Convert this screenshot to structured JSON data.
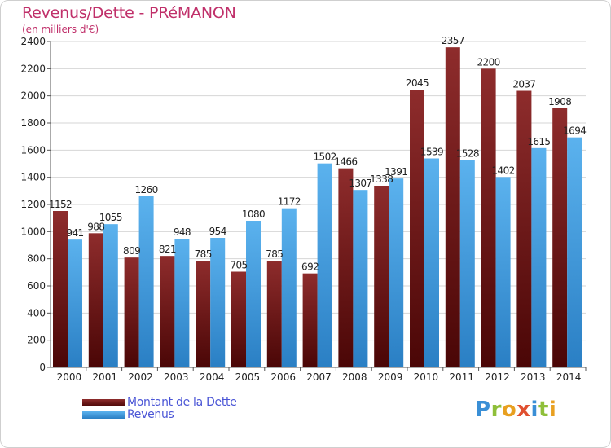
{
  "header": {
    "title": "Revenus/Dette - PRéMANON",
    "subtitle": "(en milliers d'€)"
  },
  "legend": {
    "items": [
      {
        "label": "Montant de la Dette",
        "color": "#7a1a1a"
      },
      {
        "label": "Revenus",
        "color": "#3a9be0"
      }
    ]
  },
  "logo": {
    "letters": [
      {
        "ch": "P",
        "color": "#3a8fd6"
      },
      {
        "ch": "r",
        "color": "#8fbf3a"
      },
      {
        "ch": "o",
        "color": "#e8a020"
      },
      {
        "ch": "x",
        "color": "#e05030"
      },
      {
        "ch": "i",
        "color": "#3a8fd6"
      },
      {
        "ch": "t",
        "color": "#8fbf3a"
      },
      {
        "ch": "i",
        "color": "#e8a020"
      }
    ]
  },
  "chart_data": {
    "type": "bar",
    "title": "Revenus/Dette - PRéMANON",
    "subtitle": "(en milliers d'€)",
    "xlabel": "",
    "ylabel": "",
    "ylim": [
      0,
      2400
    ],
    "yticks": [
      0,
      200,
      400,
      600,
      800,
      1000,
      1200,
      1400,
      1600,
      1800,
      2000,
      2200,
      2400
    ],
    "grid": true,
    "legend_position": "bottom-left",
    "categories": [
      "2000",
      "2001",
      "2002",
      "2003",
      "2004",
      "2005",
      "2006",
      "2007",
      "2008",
      "2009",
      "2010",
      "2011",
      "2012",
      "2013",
      "2014"
    ],
    "series": [
      {
        "name": "Montant de la Dette",
        "color": "#7a1a1a",
        "values": [
          1152,
          988,
          809,
          821,
          785,
          705,
          785,
          692,
          1466,
          1338,
          2045,
          2357,
          2200,
          2037,
          1908
        ]
      },
      {
        "name": "Revenus",
        "color": "#3a9be0",
        "values": [
          941,
          1055,
          1260,
          948,
          954,
          1080,
          1172,
          1502,
          1307,
          1391,
          1539,
          1528,
          1402,
          1615,
          1694
        ]
      }
    ]
  }
}
